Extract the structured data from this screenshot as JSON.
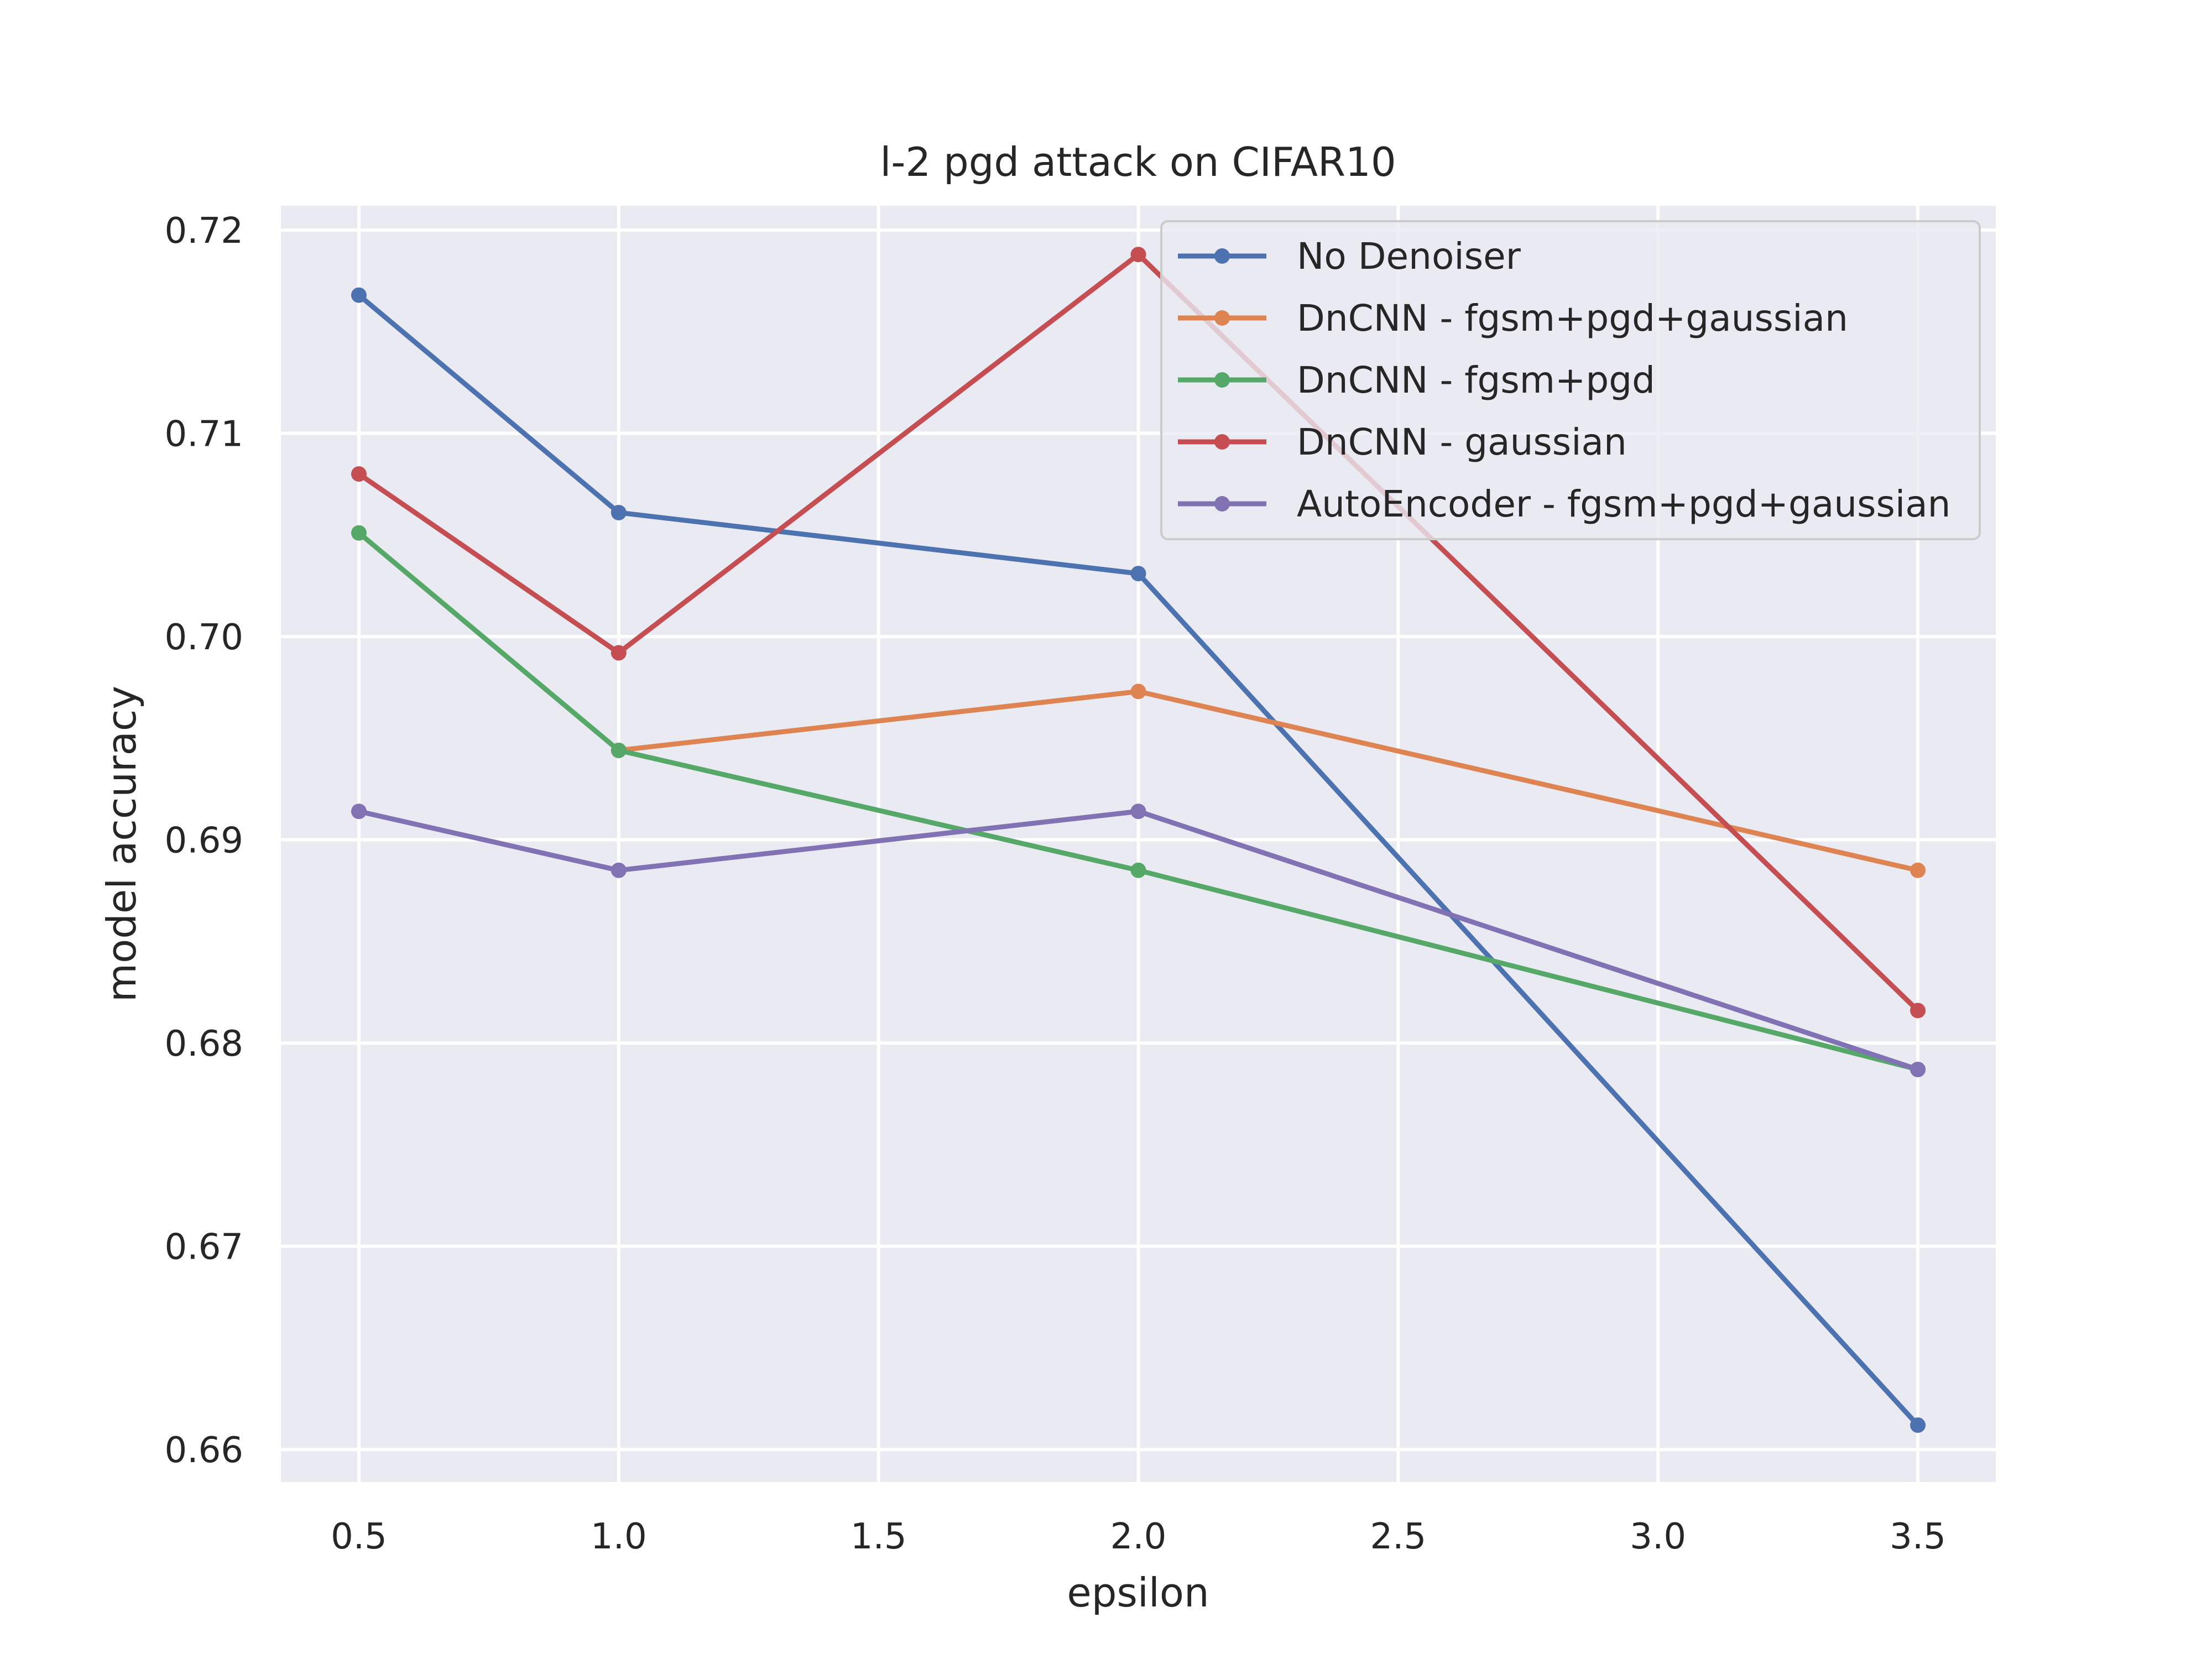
{
  "chart_data": {
    "type": "line",
    "title": "l-2 pgd attack on CIFAR10",
    "xlabel": "epsilon",
    "ylabel": "model accuracy",
    "xlim": [
      0.35,
      3.65
    ],
    "ylim": [
      0.6584,
      0.7212
    ],
    "xticks": [
      0.5,
      1.0,
      1.5,
      2.0,
      2.5,
      3.0,
      3.5
    ],
    "xtick_labels": [
      "0.5",
      "1.0",
      "1.5",
      "2.0",
      "2.5",
      "3.0",
      "3.5"
    ],
    "yticks": [
      0.66,
      0.67,
      0.68,
      0.69,
      0.7,
      0.71,
      0.72
    ],
    "ytick_labels": [
      "0.66",
      "0.67",
      "0.68",
      "0.69",
      "0.70",
      "0.71",
      "0.72"
    ],
    "grid": true,
    "legend_position": "top-right",
    "background": "#eaeaf2",
    "series": [
      {
        "name": "No Denoiser",
        "color": "#4c72b0",
        "x": [
          0.5,
          1.0,
          2.0,
          3.5
        ],
        "y": [
          0.7168,
          0.7061,
          0.7031,
          0.6612
        ]
      },
      {
        "name": "DnCNN - fgsm+pgd+gaussian",
        "color": "#dd8452",
        "x": [
          1.0,
          2.0,
          3.5
        ],
        "y": [
          0.6944,
          0.6973,
          0.6885
        ]
      },
      {
        "name": "DnCNN - fgsm+pgd",
        "color": "#55a868",
        "x": [
          0.5,
          1.0,
          2.0,
          3.5
        ],
        "y": [
          0.7051,
          0.6944,
          0.6885,
          0.6787
        ]
      },
      {
        "name": "DnCNN - gaussian",
        "color": "#c44e52",
        "x": [
          0.5,
          1.0,
          2.0,
          3.5
        ],
        "y": [
          0.708,
          0.6992,
          0.7188,
          0.6816
        ]
      },
      {
        "name": "AutoEncoder - fgsm+pgd+gaussian",
        "color": "#8172b3",
        "x": [
          0.5,
          1.0,
          2.0,
          3.5
        ],
        "y": [
          0.6914,
          0.6885,
          0.6914,
          0.6787
        ]
      }
    ]
  }
}
